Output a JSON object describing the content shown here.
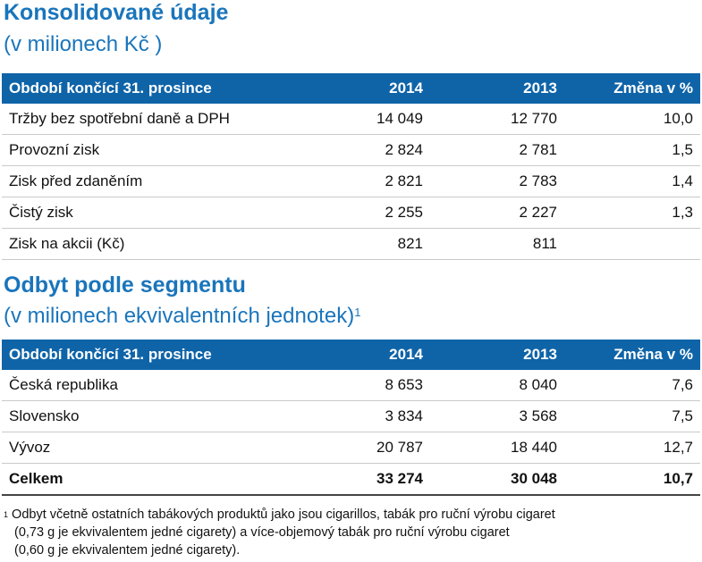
{
  "section1": {
    "title": "Konsolidované údaje",
    "subtitle": "(v milionech Kč )",
    "header": [
      "Období končící 31. prosince",
      "2014",
      "2013",
      "Změna v %"
    ],
    "rows": [
      [
        "Tržby bez spotřební daně a DPH",
        "14 049",
        "12 770",
        "10,0"
      ],
      [
        "Provozní zisk",
        "2 824",
        "2 781",
        "1,5"
      ],
      [
        "Zisk před zdaněním",
        "2 821",
        "2 783",
        "1,4"
      ],
      [
        "Čistý zisk",
        "2 255",
        "2 227",
        "1,3"
      ],
      [
        "Zisk na akcii (Kč)",
        "821",
        "811",
        ""
      ]
    ]
  },
  "section2": {
    "title": "Odbyt podle segmentu",
    "subtitle": "(v milionech ekvivalentních jednotek)",
    "subtitle_note": "1",
    "header": [
      "Období končící 31. prosince",
      "2014",
      "2013",
      "Změna v %"
    ],
    "rows": [
      [
        "Česká republika",
        "8 653",
        "8 040",
        "7,6"
      ],
      [
        "Slovensko",
        "3 834",
        "3 568",
        "7,5"
      ],
      [
        "Vývoz",
        "20 787",
        "18 440",
        "12,7"
      ]
    ],
    "total": [
      "Celkem",
      "33 274",
      "30 048",
      "10,7"
    ]
  },
  "footnote": {
    "mark": "1",
    "lines": [
      "Odbyt včetně ostatních tabákových produktů jako jsou cigarillos, tabák pro ruční výrobu cigaret",
      "(0,73 g je ekvivalentem jedné cigarety) a více-objemový tabák pro ruční výrobu cigaret",
      "(0,60 g je ekvivalentem jedné cigarety)."
    ]
  }
}
